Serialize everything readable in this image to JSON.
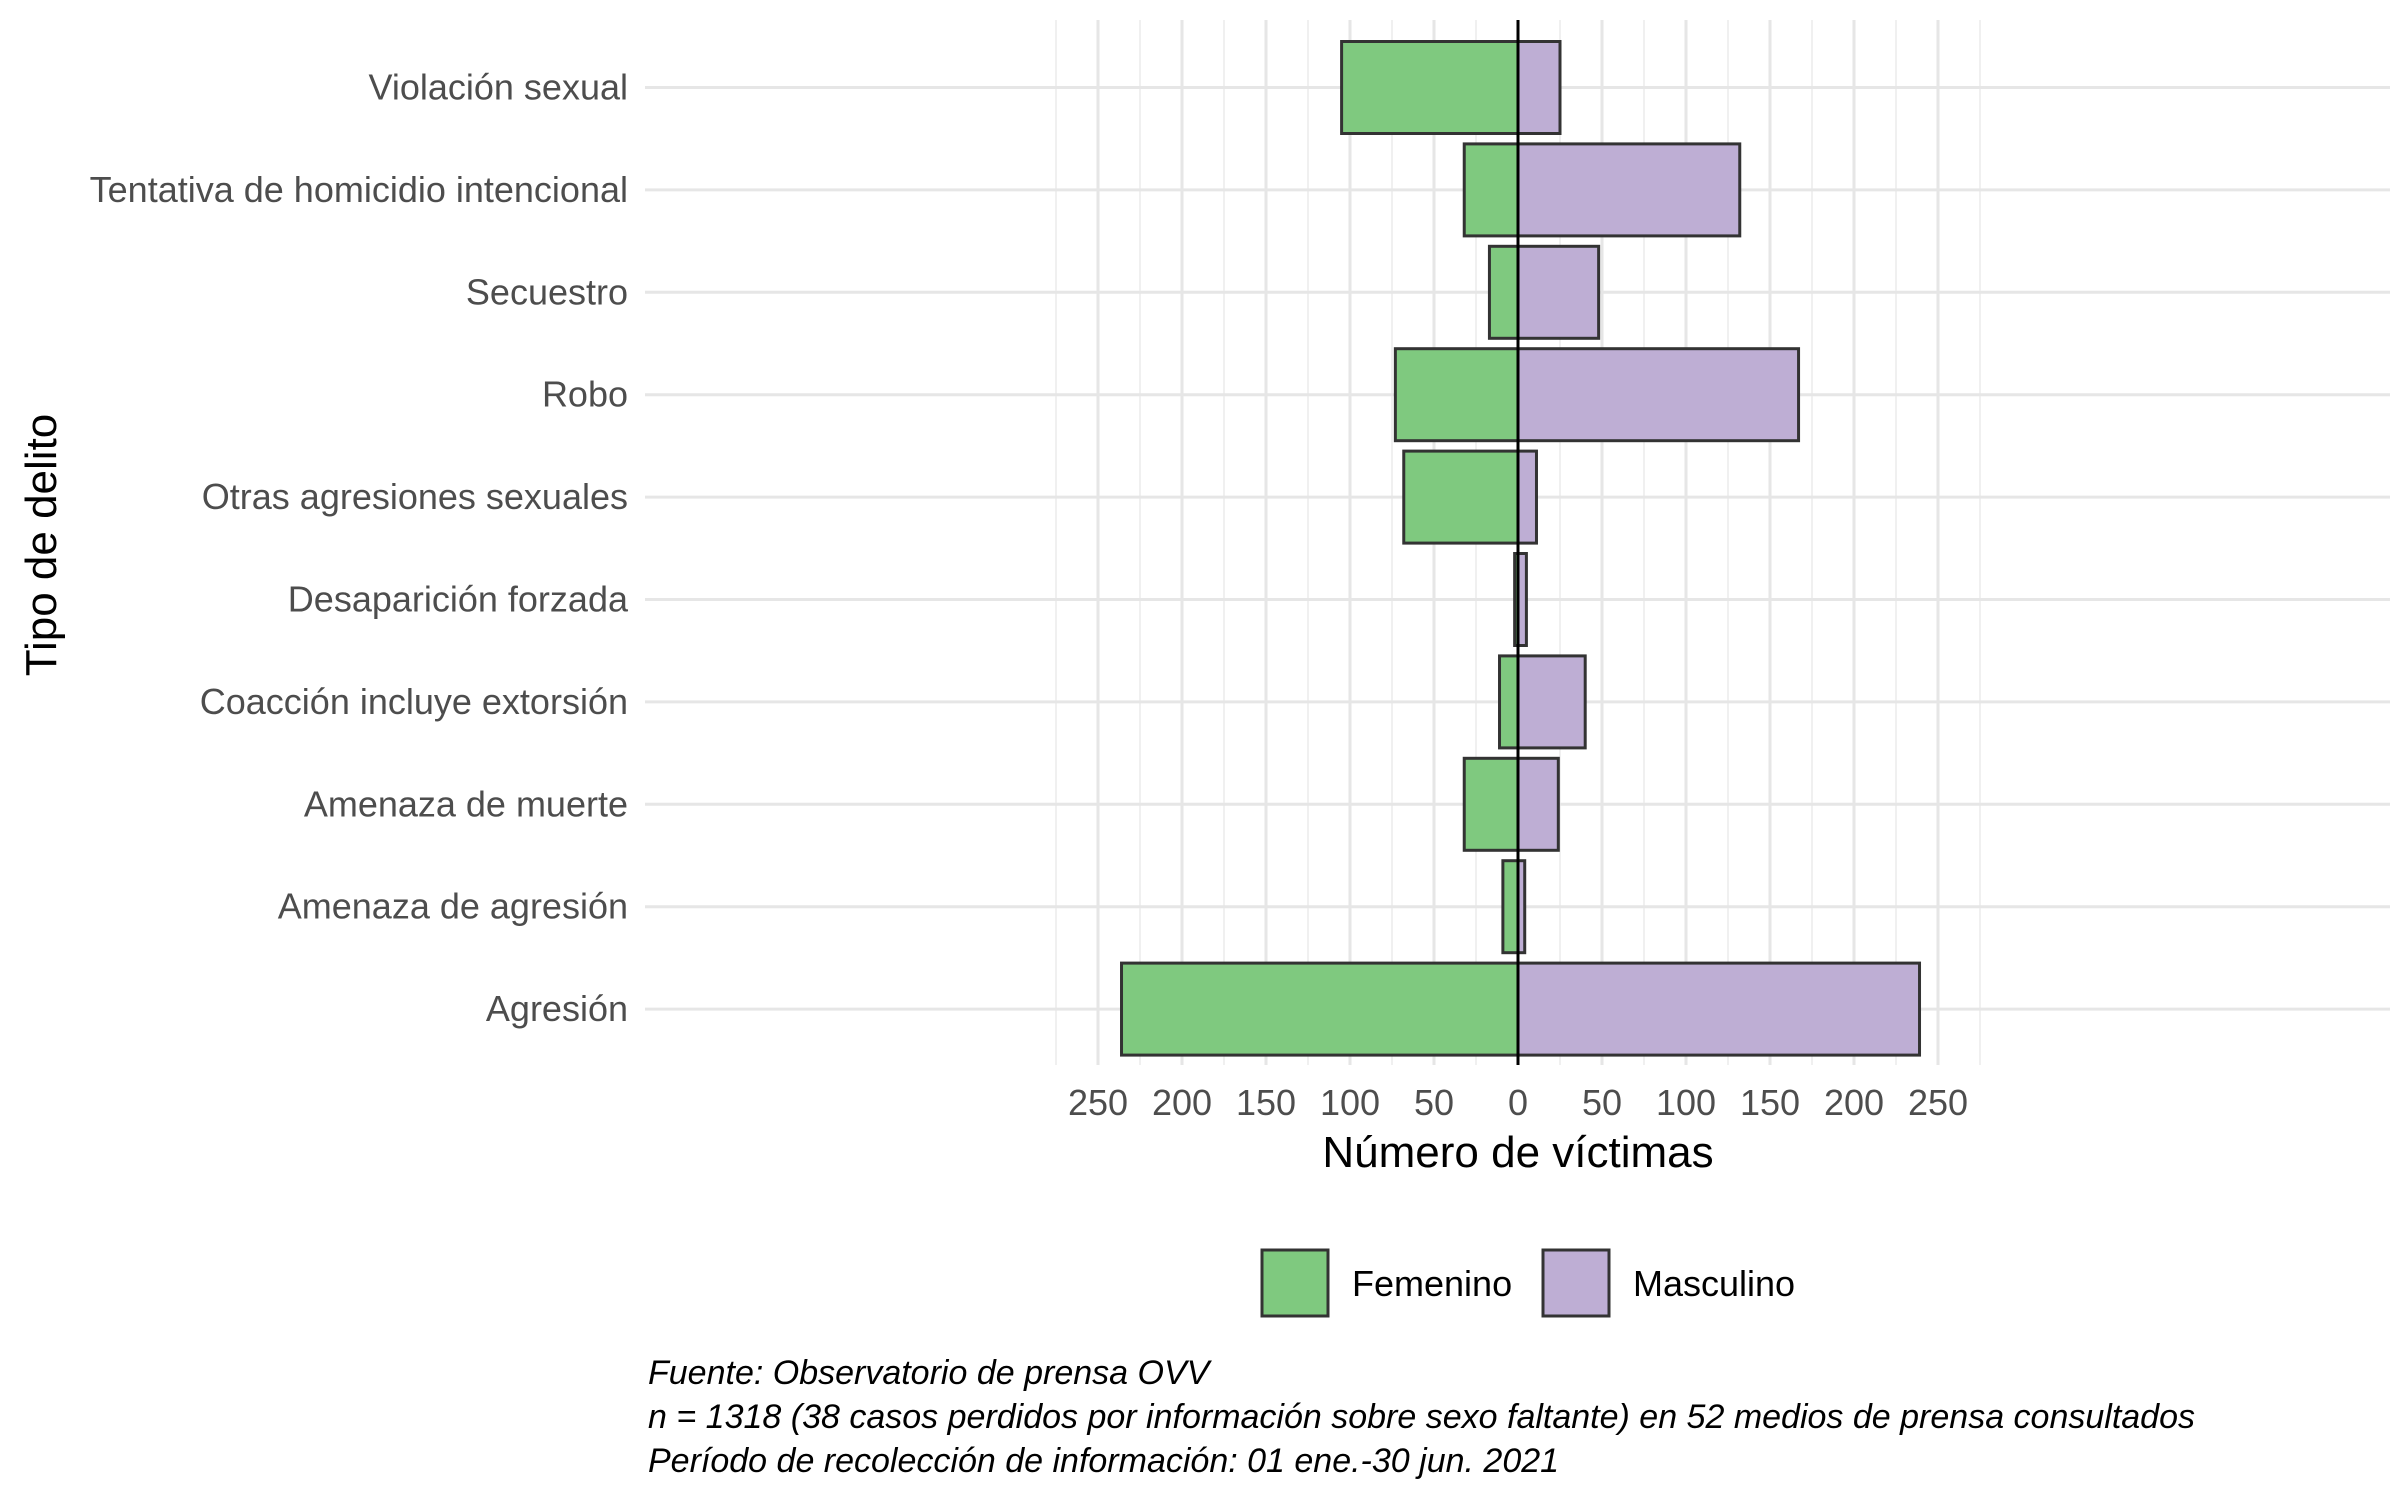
{
  "chart_data": {
    "type": "bar",
    "orientation": "horizontal-diverging",
    "categories": [
      "Violación sexual",
      "Tentativa de homicidio intencional",
      "Secuestro",
      "Robo",
      "Otras agresiones sexuales",
      "Desaparición forzada",
      "Coacción  incluye extorsión",
      "Amenaza de muerte",
      "Amenaza de agresión",
      "Agresión"
    ],
    "series": [
      {
        "name": "Femenino",
        "color": "#7fc97f",
        "values": [
          105,
          32,
          17,
          73,
          68,
          2,
          11,
          32,
          9,
          236
        ]
      },
      {
        "name": "Masculino",
        "color": "#beaed4",
        "values": [
          25,
          132,
          48,
          167,
          11,
          5,
          40,
          24,
          4,
          239
        ]
      }
    ],
    "xlabel": "Número de víctimas",
    "ylabel": "Tipo de delito",
    "xlim": [
      -255,
      258
    ],
    "x_ticks": [
      -250,
      -200,
      -150,
      -100,
      -50,
      0,
      50,
      100,
      150,
      200,
      250
    ],
    "x_tick_labels": [
      "250",
      "200",
      "150",
      "100",
      "50",
      "0",
      "50",
      "100",
      "150",
      "200",
      "250"
    ],
    "grid": true,
    "legend_position": "bottom",
    "caption": [
      "Fuente: Observatorio de prensa OVV",
      "n = 1318 (38 casos perdidos por información sobre sexo faltante) en 52 medios de prensa consultados",
      "Período de recolección de información: 01 ene.-30 jun. 2021"
    ]
  }
}
